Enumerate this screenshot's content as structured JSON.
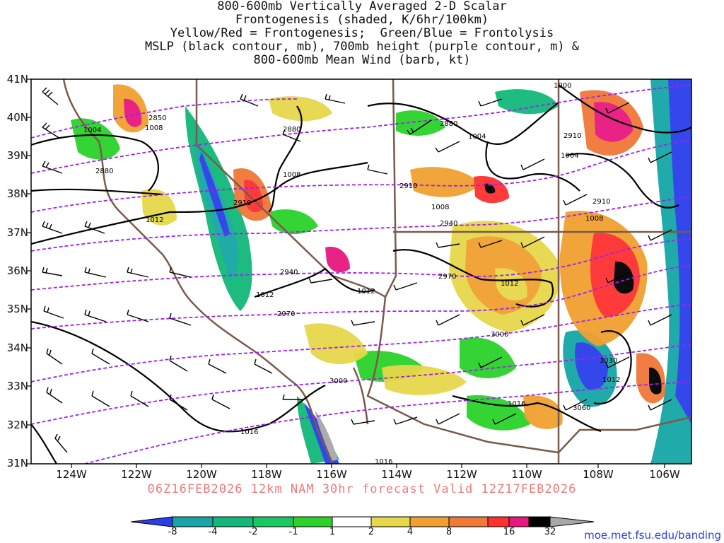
{
  "title_lines": [
    "800-600mb Vertically Averaged 2-D Scalar",
    "Frontogenesis (shaded, K/6hr/100km)",
    "Yellow/Red = Frontogenesis;  Green/Blue = Frontolysis",
    "MSLP (black contour, mb), 700mb height (purple contour, m) &",
    "800-600mb Mean Wind (barb, kt)"
  ],
  "valid_line": "06Z16FEB2026 12km NAM 30hr forecast Valid 12Z17FEB2026",
  "lat_labels": [
    "41N",
    "40N",
    "39N",
    "38N",
    "37N",
    "36N",
    "35N",
    "34N",
    "33N",
    "32N",
    "31N"
  ],
  "lon_labels": [
    "124W",
    "122W",
    "120W",
    "118W",
    "116W",
    "114W",
    "112W",
    "110W",
    "108W",
    "106W"
  ],
  "mslp_labels": [
    "1004",
    "1008",
    "1008",
    "1012",
    "1012",
    "1012",
    "1012",
    "1016",
    "1016",
    "1016",
    "1008",
    "1004",
    "1004",
    "1000",
    "1008",
    "1012"
  ],
  "height_labels": [
    "2850",
    "2880",
    "2880",
    "2880",
    "2910",
    "2910",
    "2910",
    "2910",
    "2940",
    "2940",
    "2970",
    "2970",
    "3000",
    "3000",
    "3030",
    "3060"
  ],
  "colorbar": {
    "ticks": [
      "-8",
      "-4",
      "-2",
      "-1",
      "1",
      "2",
      "4",
      "8",
      "16",
      "32"
    ],
    "colors": [
      "#2a3eea",
      "#16a6a6",
      "#12b87a",
      "#18c860",
      "#2ad22a",
      "#ffffff",
      "#e6d84a",
      "#f0a030",
      "#f07838",
      "#ff3030",
      "#e81880",
      "#000000",
      "#a8a8a8"
    ]
  },
  "credit": "moe.met.fsu.edu/banding"
}
